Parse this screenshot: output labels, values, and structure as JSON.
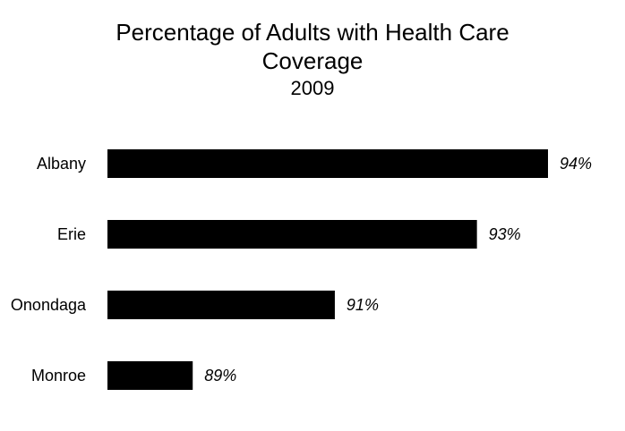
{
  "chart_data": {
    "type": "bar",
    "orientation": "horizontal",
    "title": "Percentage of Adults with Health Care Coverage",
    "subtitle": "2009",
    "categories": [
      "Albany",
      "Erie",
      "Onondaga",
      "Monroe"
    ],
    "values": [
      94,
      93,
      91,
      89
    ],
    "value_labels": [
      "94%",
      "93%",
      "91%",
      "89%"
    ],
    "bar_color": "#000000",
    "xlim": [
      87.8,
      94
    ],
    "grid": false,
    "legend": "none",
    "x_axis_visible": false
  },
  "title_lines": [
    "Percentage of Adults with Health Care",
    "Coverage"
  ]
}
